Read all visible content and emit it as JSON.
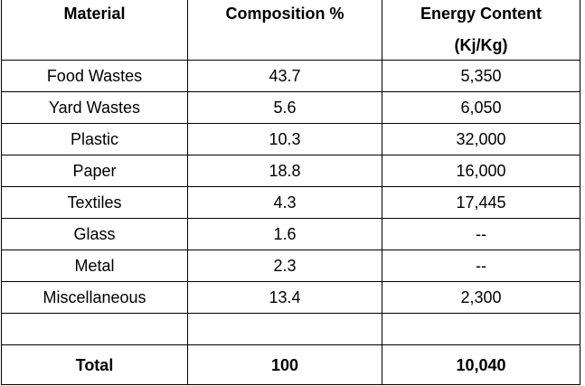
{
  "table": {
    "headers": {
      "material": "Material",
      "composition": "Composition %",
      "energy_line1": "Energy Content",
      "energy_line2": "(Kj/Kg)"
    },
    "rows": [
      {
        "material": "Food Wastes",
        "composition": "43.7",
        "energy": "5,350"
      },
      {
        "material": "Yard Wastes",
        "composition": "5.6",
        "energy": "6,050"
      },
      {
        "material": "Plastic",
        "composition": "10.3",
        "energy": "32,000"
      },
      {
        "material": "Paper",
        "composition": "18.8",
        "energy": "16,000"
      },
      {
        "material": "Textiles",
        "composition": "4.3",
        "energy": "17,445"
      },
      {
        "material": "Glass",
        "composition": "1.6",
        "energy": "--"
      },
      {
        "material": "Metal",
        "composition": "2.3",
        "energy": "--"
      },
      {
        "material": "Miscellaneous",
        "composition": "13.4",
        "energy": "2,300"
      }
    ],
    "total": {
      "label": "Total",
      "composition": "100",
      "energy": "10,040"
    }
  }
}
